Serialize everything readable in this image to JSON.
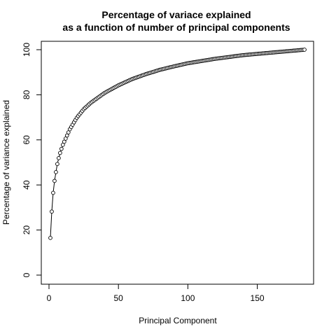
{
  "chart_data": {
    "type": "scatter",
    "title_line1": "Percentage of variace explained",
    "title_line2": "as a function of number of principal components",
    "xlabel": "Principal Component",
    "ylabel": "Percentage of variance explained",
    "xlim": [
      0,
      184
    ],
    "ylim": [
      0,
      100
    ],
    "xticks": [
      0,
      50,
      100,
      150
    ],
    "yticks": [
      0,
      20,
      40,
      60,
      80,
      100
    ],
    "n_points": 184,
    "grid": false,
    "legend": "none",
    "marker": "open-circle",
    "connect_points": true,
    "color": "#000000",
    "x": [
      1,
      2,
      3,
      4,
      5,
      6,
      7,
      8,
      9,
      10,
      15,
      20,
      25,
      30,
      40,
      50,
      60,
      70,
      80,
      90,
      100,
      120,
      140,
      160,
      184
    ],
    "y": [
      16.5,
      28.2,
      36.5,
      41.8,
      45.7,
      49.3,
      51.9,
      54.2,
      56.0,
      57.8,
      64.7,
      69.8,
      73.6,
      76.4,
      80.8,
      84.2,
      87.0,
      89.2,
      91.1,
      92.6,
      94.0,
      96.0,
      97.6,
      98.7,
      100.0
    ]
  }
}
